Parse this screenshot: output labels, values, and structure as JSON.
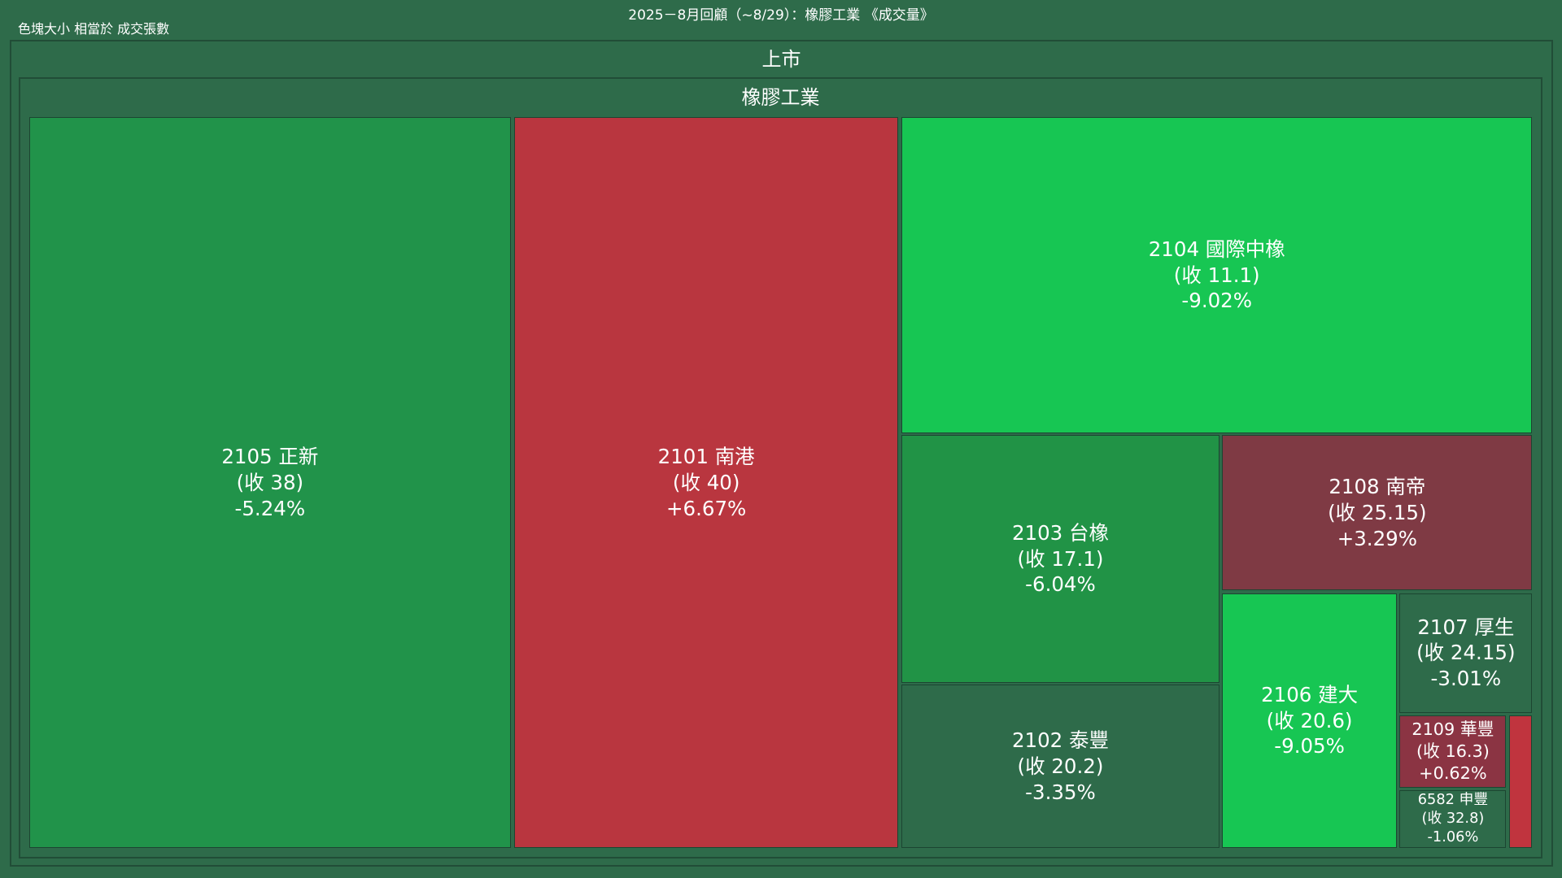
{
  "chart_data": {
    "type": "treemap",
    "title": "2025－8月回顧（~8/29）：橡膠工業 《成交量》",
    "subtitle": "色塊大小 相當於 成交張數",
    "root": "上市",
    "group": "橡膠工業",
    "tiles": [
      {
        "label": "2105 正新",
        "close": "(收 38)",
        "change": "-5.24%",
        "color": "#21934a"
      },
      {
        "label": "2101 南港",
        "close": "(收 40)",
        "change": "+6.67%",
        "color": "#b9363f"
      },
      {
        "label": "2104 國際中橡",
        "close": "(收 11.1)",
        "change": "-9.02%",
        "color": "#17c653"
      },
      {
        "label": "2103 台橡",
        "close": "(收 17.1)",
        "change": "-6.04%",
        "color": "#219346"
      },
      {
        "label": "2102 泰豐",
        "close": "(收 20.2)",
        "change": "-3.35%",
        "color": "#2e6b4a"
      },
      {
        "label": "2108 南帝",
        "close": "(收 25.15)",
        "change": "+3.29%",
        "color": "#7f3a44"
      },
      {
        "label": "2106 建大",
        "close": "(收 20.6)",
        "change": "-9.05%",
        "color": "#17c653"
      },
      {
        "label": "2107 厚生",
        "close": "(收 24.15)",
        "change": "-3.01%",
        "color": "#2e6b4a"
      },
      {
        "label": "2109 華豐",
        "close": "(收 16.3)",
        "change": "+0.62%",
        "color": "#8b3443"
      },
      {
        "label": "6582 申豐",
        "close": "(收 32.8)",
        "change": "-1.06%",
        "color": "#2e6b4a"
      }
    ]
  }
}
